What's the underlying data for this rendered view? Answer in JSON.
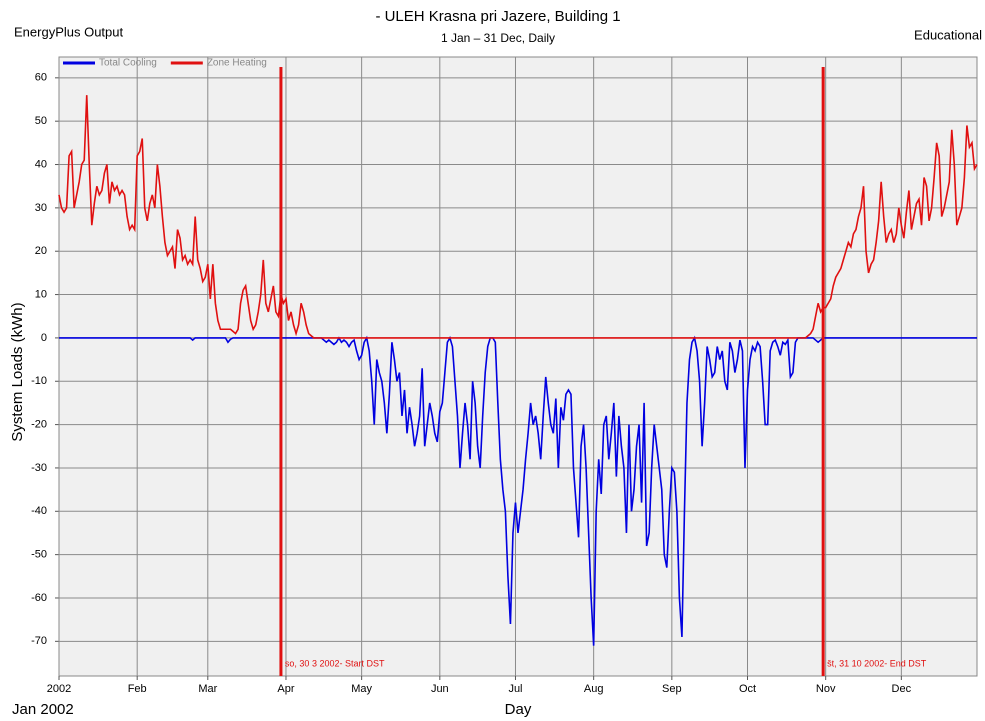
{
  "header_left": "EnergyPlus Output",
  "header_right": "Educational",
  "footer_left": "Jan 2002",
  "chart_data": {
    "type": "line",
    "title": "- ULEH Krasna pri Jazere, Building 1",
    "subtitle": "1 Jan – 31 Dec, Daily",
    "y_label": "System Loads (kWh)",
    "x_label": "Day",
    "grid": true,
    "legend": "top-left",
    "xlim": [
      0,
      364
    ],
    "ylim": [
      -78,
      62.5
    ],
    "xticks": [
      {
        "value": 0,
        "label": "2002"
      },
      {
        "value": 31,
        "label": "Feb"
      },
      {
        "value": 59,
        "label": "Mar"
      },
      {
        "value": 90,
        "label": "Apr"
      },
      {
        "value": 120,
        "label": "May"
      },
      {
        "value": 151,
        "label": "Jun"
      },
      {
        "value": 181,
        "label": "Jul"
      },
      {
        "value": 212,
        "label": "Aug"
      },
      {
        "value": 243,
        "label": "Sep"
      },
      {
        "value": 273,
        "label": "Oct"
      },
      {
        "value": 304,
        "label": "Nov"
      },
      {
        "value": 334,
        "label": "Dec"
      }
    ],
    "yticks": [
      -70,
      -60,
      -50,
      -40,
      -30,
      -20,
      -10,
      0,
      10,
      20,
      30,
      40,
      50,
      60
    ],
    "annotations": [
      {
        "x": 88,
        "text": "so, 30 3 2002- Start DST",
        "color": "#e01010"
      },
      {
        "x": 303,
        "text": "št, 31 10 2002- End DST",
        "color": "#e01010"
      }
    ],
    "series": [
      {
        "name": "Total Cooling",
        "color": "#0000e0",
        "values": [
          0,
          0,
          0,
          0,
          0,
          0,
          0,
          0,
          0,
          0,
          0,
          0,
          0,
          0,
          0,
          0,
          0,
          0,
          0,
          0,
          0,
          0,
          0,
          0,
          0,
          0,
          0,
          0,
          0,
          0,
          0,
          0,
          0,
          0,
          0,
          0,
          0,
          0,
          0,
          0,
          0,
          0,
          0,
          0,
          0,
          0,
          0,
          0,
          0,
          0,
          0,
          0,
          0,
          -0.5,
          0,
          0,
          0,
          0,
          0,
          0,
          0,
          0,
          0,
          0,
          0,
          0,
          0,
          -1,
          -0.3,
          0,
          0,
          0,
          0,
          0,
          0,
          0,
          0,
          0,
          0,
          0,
          0,
          0,
          0,
          0,
          0,
          0,
          0,
          0,
          0,
          0,
          0,
          0,
          0,
          0,
          0,
          0,
          0,
          0,
          0,
          0,
          0,
          0,
          0,
          0,
          0,
          -0.5,
          -1,
          -0.5,
          -1,
          -1.5,
          -1,
          0,
          -1,
          -0.5,
          -1,
          -2,
          -1,
          -0.5,
          -3,
          -5,
          -4,
          -1,
          0,
          -3,
          -10,
          -20,
          -5,
          -8,
          -10,
          -15,
          -22,
          -13,
          -1,
          -5,
          -10,
          -8,
          -18,
          -12,
          -22,
          -16,
          -20,
          -25,
          -22,
          -18,
          -7,
          -25,
          -20,
          -15,
          -18,
          -22,
          -24,
          -17,
          -15,
          -8,
          -1,
          0,
          -2,
          -10,
          -18,
          -30,
          -22,
          -15,
          -20,
          -28,
          -10,
          -15,
          -25,
          -30,
          -18,
          -8,
          -2,
          0,
          0,
          -1,
          -15,
          -28,
          -35,
          -40,
          -55,
          -66,
          -45,
          -38,
          -45,
          -40,
          -35,
          -28,
          -22,
          -15,
          -20,
          -18,
          -22,
          -28,
          -18,
          -9,
          -15,
          -20,
          -22,
          -14,
          -30,
          -16,
          -19,
          -13,
          -12,
          -13,
          -30,
          -38,
          -46,
          -25,
          -20,
          -30,
          -45,
          -60,
          -71,
          -40,
          -28,
          -36,
          -20,
          -18,
          -28,
          -22,
          -15,
          -32,
          -18,
          -25,
          -30,
          -45,
          -20,
          -40,
          -35,
          -25,
          -20,
          -38,
          -15,
          -48,
          -45,
          -30,
          -20,
          -25,
          -30,
          -35,
          -50,
          -53,
          -40,
          -30,
          -31,
          -40,
          -60,
          -69,
          -40,
          -15,
          -5,
          -1,
          0,
          -3,
          -10,
          -25,
          -15,
          -2,
          -5,
          -9,
          -8,
          -2,
          -5,
          -3,
          -10,
          -12,
          -1,
          -3,
          -8,
          -5,
          -0.5,
          -3,
          -30,
          -12,
          -5,
          -2,
          -3,
          -1,
          -2,
          -10,
          -20,
          -20,
          -3,
          -1,
          -0.5,
          -2,
          -4,
          -1,
          -1.5,
          -0.5,
          -9,
          -8,
          -1,
          0,
          0,
          0,
          0,
          0,
          0,
          0,
          -0.5,
          -1,
          -0.5,
          0,
          0,
          0,
          0,
          0,
          0,
          0,
          0,
          0,
          0,
          0,
          0,
          0,
          0,
          0,
          0,
          0,
          0,
          0,
          0,
          0,
          0,
          0,
          0,
          0,
          0,
          0,
          0,
          0,
          0,
          0,
          0,
          0,
          0,
          0,
          0,
          0,
          0,
          0,
          0,
          0,
          0,
          0,
          0,
          0,
          0,
          0,
          0,
          0,
          0,
          0,
          0,
          0,
          0,
          0,
          0,
          0,
          0,
          0,
          0,
          0,
          0
        ]
      },
      {
        "name": "Zone Heating",
        "color": "#e01010",
        "values": [
          33,
          30,
          29,
          30,
          42,
          43,
          30,
          33,
          36,
          40,
          41,
          56,
          40,
          26,
          31,
          35,
          33,
          34,
          38,
          40,
          31,
          36,
          34,
          35,
          33,
          34,
          33,
          28,
          25,
          26,
          25,
          42,
          43,
          46,
          30,
          27,
          31,
          33,
          30,
          40,
          35,
          28,
          22,
          19,
          20,
          21,
          16,
          25,
          23,
          18,
          19,
          17,
          18,
          17,
          28,
          18,
          16,
          13,
          14,
          17,
          9,
          17,
          8,
          4,
          2,
          2,
          2,
          2,
          2,
          1.5,
          1,
          2,
          8,
          11,
          12,
          8,
          4,
          2,
          3,
          6,
          10,
          18,
          8,
          6,
          9,
          12,
          6,
          5,
          10,
          8,
          9,
          4,
          6,
          3,
          1,
          3,
          8,
          6,
          3,
          1,
          0.5,
          0,
          0,
          0,
          0,
          0,
          0,
          0,
          0,
          0,
          0,
          0,
          0,
          0,
          0,
          0,
          0,
          0,
          0,
          0,
          0,
          0,
          0,
          0,
          0,
          0,
          0,
          0,
          0,
          0,
          0,
          0,
          0,
          0,
          0,
          0,
          0,
          0,
          0,
          0,
          0,
          0,
          0,
          0,
          0,
          0,
          0,
          0,
          0,
          0,
          0,
          0,
          0,
          0,
          0,
          0,
          0,
          0,
          0,
          0,
          0,
          0,
          0,
          0,
          0,
          0,
          0,
          0,
          0,
          0,
          0,
          0,
          0,
          0,
          0,
          0,
          0,
          0,
          0,
          0,
          0,
          0,
          0,
          0,
          0,
          0,
          0,
          0,
          0,
          0,
          0,
          0,
          0,
          0,
          0,
          0,
          0,
          0,
          0,
          0,
          0,
          0,
          0,
          0,
          0,
          0,
          0,
          0,
          0,
          0,
          0,
          0,
          0,
          0,
          0,
          0,
          0,
          0,
          0,
          0,
          0,
          0,
          0,
          0,
          0,
          0,
          0,
          0,
          0,
          0,
          0,
          0,
          0,
          0,
          0,
          0,
          0,
          0,
          0,
          0,
          0,
          0,
          0,
          0,
          0,
          0,
          0,
          0,
          0,
          0,
          0,
          0,
          0,
          0,
          0,
          0,
          0,
          0,
          0,
          0,
          0,
          0,
          0,
          0,
          0,
          0,
          0,
          0,
          0,
          0,
          0,
          0,
          0,
          0,
          0,
          0,
          0,
          0,
          0,
          0,
          0,
          0,
          0,
          0,
          0,
          0,
          0,
          0,
          0,
          0,
          0,
          0,
          0,
          0,
          0,
          0,
          0,
          0.5,
          1,
          2,
          5,
          8,
          6,
          7,
          7,
          8,
          9,
          12,
          14,
          15,
          16,
          18,
          20,
          22,
          21,
          24,
          25,
          28,
          30,
          35,
          20,
          15,
          17,
          18,
          22,
          27,
          36,
          28,
          22,
          24,
          25,
          22,
          24,
          30,
          26,
          23,
          29,
          34,
          25,
          28,
          31,
          32,
          26,
          37,
          35,
          27,
          30,
          37,
          45,
          42,
          28,
          30,
          33,
          36,
          48,
          40,
          26,
          28,
          30,
          37,
          49,
          44,
          45,
          39,
          40
        ]
      }
    ]
  }
}
